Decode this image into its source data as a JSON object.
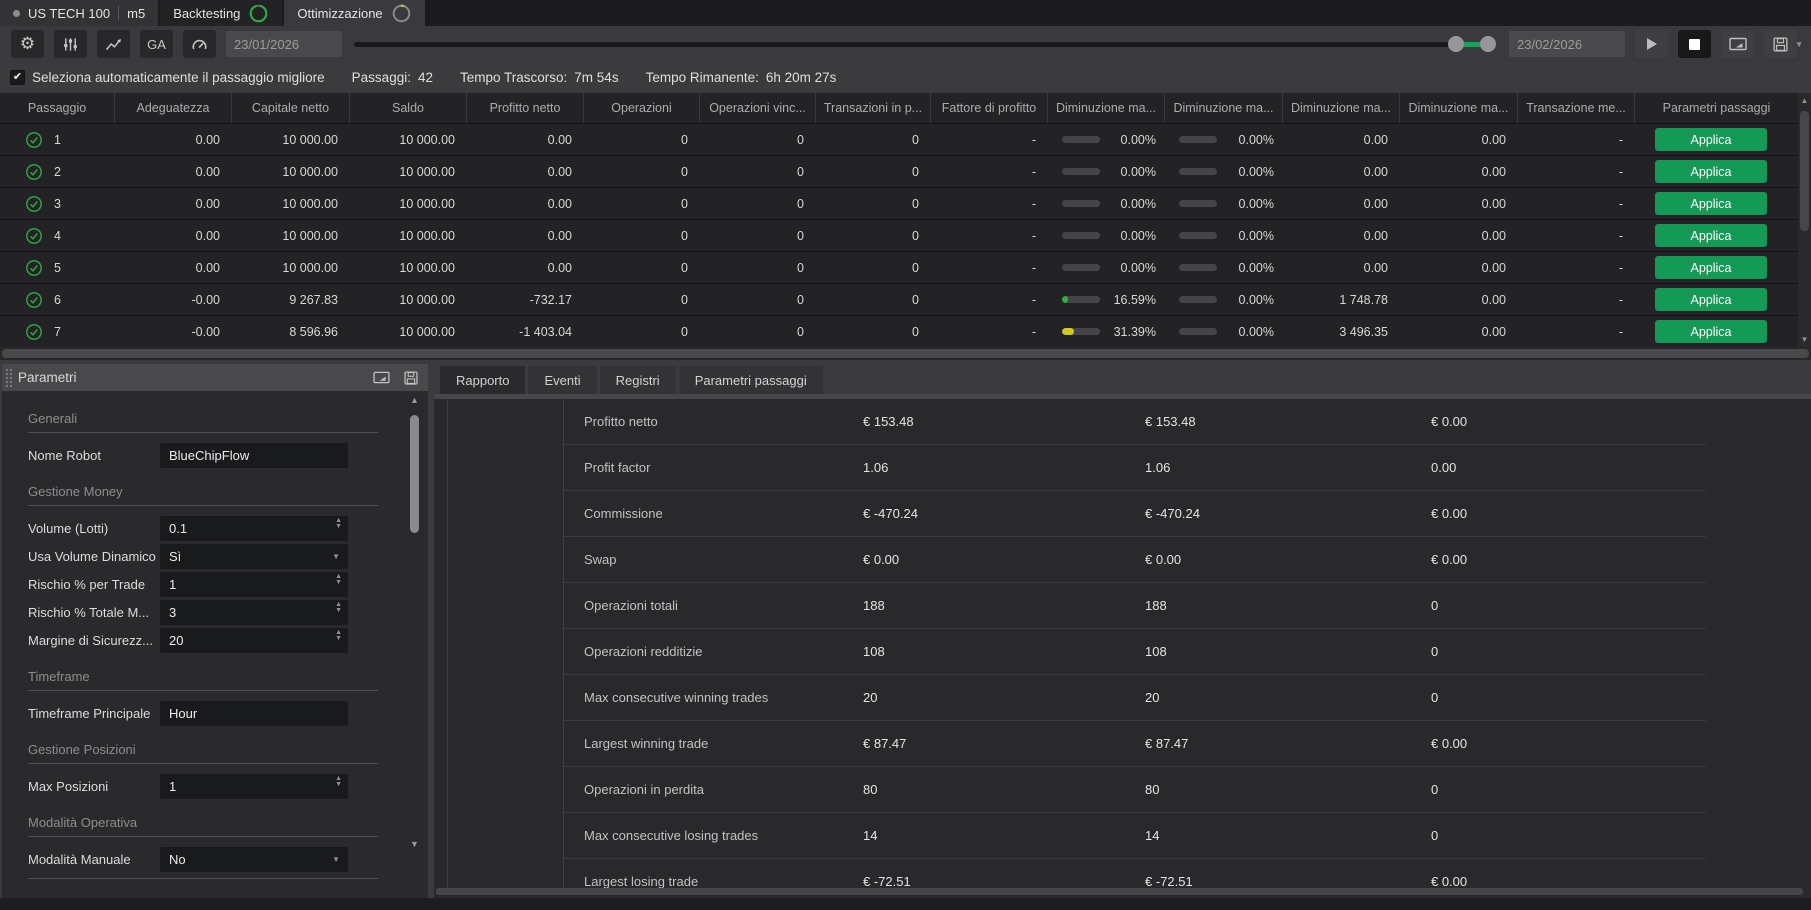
{
  "window": {
    "tabs": {
      "instrument_label": "US TECH 100",
      "instrument_timeframe": "m5",
      "backtesting_label": "Backtesting",
      "optimization_label": "Ottimizzazione"
    },
    "toolbar": {
      "ga_label": "GA",
      "date_from": "23/01/2026",
      "date_to": "23/02/2026"
    },
    "status_bar": {
      "auto_select_label": "Seleziona automaticamente il passaggio migliore",
      "passes_label": "Passaggi:",
      "passes_value": "42",
      "elapsed_label": "Tempo Trascorso:",
      "elapsed_value": "7m 54s",
      "remaining_label": "Tempo Rimanente:",
      "remaining_value": "6h 20m 27s"
    }
  },
  "results_table": {
    "columns": [
      "Passaggio",
      "Adeguatezza",
      "Capitale netto",
      "Saldo",
      "Profitto netto",
      "Operazioni",
      "Operazioni vinc...",
      "Transazioni in p...",
      "Fattore di profitto",
      "Diminuzione ma...",
      "Diminuzione ma...",
      "Diminuzione ma...",
      "Diminuzione ma...",
      "Transazione me...",
      "Parametri passaggi"
    ],
    "apply_label": "Applica",
    "rows": [
      {
        "pass": "1",
        "fitness": "0.00",
        "equity": "10 000.00",
        "balance": "10 000.00",
        "net_profit": "0.00",
        "trades": "0",
        "winning": "0",
        "pending": "0",
        "profit_factor": "-",
        "dd1_pct": "0.00%",
        "dd1_fill": 0,
        "dd1_color": "",
        "dd2_pct": "0.00%",
        "dd2_fill": 0,
        "dd3": "0.00",
        "dd4": "0.00",
        "avg_trade": "-"
      },
      {
        "pass": "2",
        "fitness": "0.00",
        "equity": "10 000.00",
        "balance": "10 000.00",
        "net_profit": "0.00",
        "trades": "0",
        "winning": "0",
        "pending": "0",
        "profit_factor": "-",
        "dd1_pct": "0.00%",
        "dd1_fill": 0,
        "dd1_color": "",
        "dd2_pct": "0.00%",
        "dd2_fill": 0,
        "dd3": "0.00",
        "dd4": "0.00",
        "avg_trade": "-"
      },
      {
        "pass": "3",
        "fitness": "0.00",
        "equity": "10 000.00",
        "balance": "10 000.00",
        "net_profit": "0.00",
        "trades": "0",
        "winning": "0",
        "pending": "0",
        "profit_factor": "-",
        "dd1_pct": "0.00%",
        "dd1_fill": 0,
        "dd1_color": "",
        "dd2_pct": "0.00%",
        "dd2_fill": 0,
        "dd3": "0.00",
        "dd4": "0.00",
        "avg_trade": "-"
      },
      {
        "pass": "4",
        "fitness": "0.00",
        "equity": "10 000.00",
        "balance": "10 000.00",
        "net_profit": "0.00",
        "trades": "0",
        "winning": "0",
        "pending": "0",
        "profit_factor": "-",
        "dd1_pct": "0.00%",
        "dd1_fill": 0,
        "dd1_color": "",
        "dd2_pct": "0.00%",
        "dd2_fill": 0,
        "dd3": "0.00",
        "dd4": "0.00",
        "avg_trade": "-"
      },
      {
        "pass": "5",
        "fitness": "0.00",
        "equity": "10 000.00",
        "balance": "10 000.00",
        "net_profit": "0.00",
        "trades": "0",
        "winning": "0",
        "pending": "0",
        "profit_factor": "-",
        "dd1_pct": "0.00%",
        "dd1_fill": 0,
        "dd1_color": "",
        "dd2_pct": "0.00%",
        "dd2_fill": 0,
        "dd3": "0.00",
        "dd4": "0.00",
        "avg_trade": "-"
      },
      {
        "pass": "6",
        "fitness": "-0.00",
        "equity": "9 267.83",
        "balance": "10 000.00",
        "net_profit": "-732.17",
        "trades": "0",
        "winning": "0",
        "pending": "0",
        "profit_factor": "-",
        "dd1_pct": "16.59%",
        "dd1_fill": 0.17,
        "dd1_color": "#2fae43",
        "dd2_pct": "0.00%",
        "dd2_fill": 0,
        "dd3": "1 748.78",
        "dd4": "0.00",
        "avg_trade": "-"
      },
      {
        "pass": "7",
        "fitness": "-0.00",
        "equity": "8 596.96",
        "balance": "10 000.00",
        "net_profit": "-1 403.04",
        "trades": "0",
        "winning": "0",
        "pending": "0",
        "profit_factor": "-",
        "dd1_pct": "31.39%",
        "dd1_fill": 0.31,
        "dd1_color": "#d3c920",
        "dd2_pct": "0.00%",
        "dd2_fill": 0,
        "dd3": "3 496.35",
        "dd4": "0.00",
        "avg_trade": "-"
      }
    ]
  },
  "parameters_panel": {
    "title": "Parametri",
    "sections": [
      {
        "heading": "Generali",
        "fields": [
          {
            "label": "Nome Robot",
            "value": "BlueChipFlow",
            "type": "text"
          }
        ]
      },
      {
        "heading": "Gestione Money",
        "fields": [
          {
            "label": "Volume (Lotti)",
            "value": "0.1",
            "type": "stepper"
          },
          {
            "label": "Usa Volume Dinamico",
            "value": "Sì",
            "type": "select"
          },
          {
            "label": "Rischio % per Trade",
            "value": "1",
            "type": "stepper"
          },
          {
            "label": "Rischio % Totale M...",
            "value": "3",
            "type": "stepper"
          },
          {
            "label": "Margine di Sicurezz...",
            "value": "20",
            "type": "stepper"
          }
        ]
      },
      {
        "heading": "Timeframe",
        "fields": [
          {
            "label": "Timeframe Principale",
            "value": "Hour",
            "type": "text"
          }
        ]
      },
      {
        "heading": "Gestione Posizioni",
        "fields": [
          {
            "label": "Max Posizioni",
            "value": "1",
            "type": "stepper"
          }
        ]
      },
      {
        "heading": "Modalità Operativa",
        "fields": [
          {
            "label": "Modalità Manuale",
            "value": "No",
            "type": "select"
          }
        ]
      }
    ]
  },
  "details_panel": {
    "tabs": [
      "Rapporto",
      "Eventi",
      "Registri",
      "Parametri passaggi"
    ],
    "active_tab": "Rapporto",
    "report_rows": [
      {
        "label": "Profitto netto",
        "values": [
          "€ 153.48",
          "€ 153.48",
          "€ 0.00"
        ]
      },
      {
        "label": "Profit factor",
        "values": [
          "1.06",
          "1.06",
          "0.00"
        ]
      },
      {
        "label": "Commissione",
        "values": [
          "€ -470.24",
          "€ -470.24",
          "€ 0.00"
        ]
      },
      {
        "label": "Swap",
        "values": [
          "€ 0.00",
          "€ 0.00",
          "€ 0.00"
        ]
      },
      {
        "label": "Operazioni totali",
        "values": [
          "188",
          "188",
          "0"
        ]
      },
      {
        "label": "Operazioni redditizie",
        "values": [
          "108",
          "108",
          "0"
        ]
      },
      {
        "label": "Max consecutive winning trades",
        "values": [
          "20",
          "20",
          "0"
        ]
      },
      {
        "label": "Largest winning trade",
        "values": [
          "€ 87.47",
          "€ 87.47",
          "€ 0.00"
        ]
      },
      {
        "label": "Operazioni in perdita",
        "values": [
          "80",
          "80",
          "0"
        ]
      },
      {
        "label": "Max consecutive losing trades",
        "values": [
          "14",
          "14",
          "0"
        ]
      },
      {
        "label": "Largest losing trade",
        "values": [
          "€ -72.51",
          "€ -72.51",
          "€ 0.00"
        ]
      }
    ]
  },
  "colors": {
    "apply_green": "#149a54",
    "check_green": "#2fae43",
    "progress_yellow": "#d3c920",
    "progress_green": "#2fae43",
    "ring_green": "#2fae43",
    "ring_yellow": "#d3c920"
  }
}
